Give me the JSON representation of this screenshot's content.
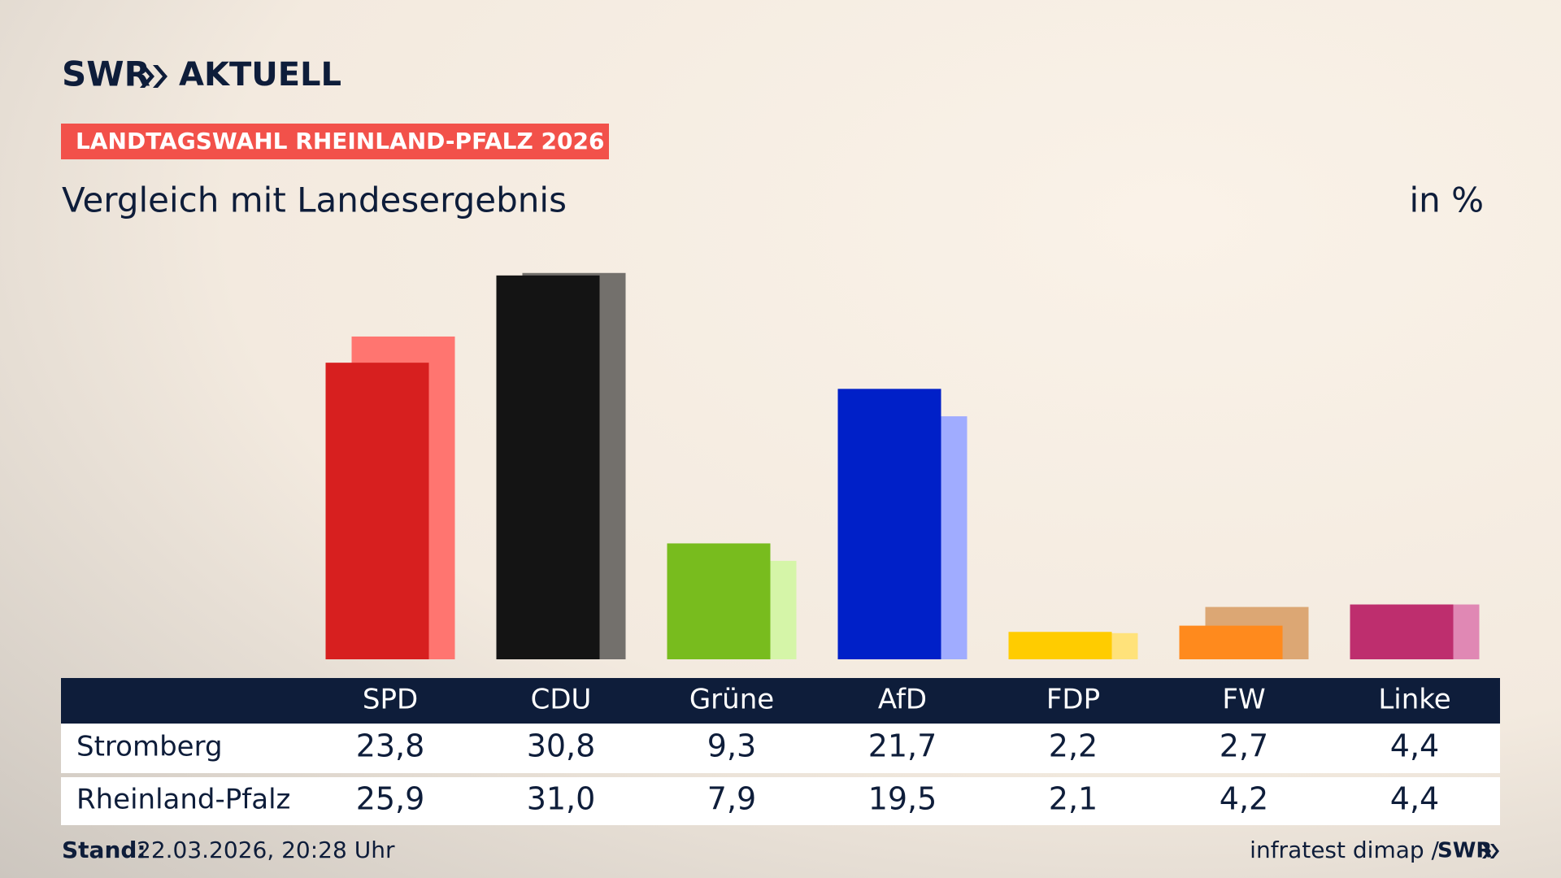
{
  "brand": {
    "name": "SWR",
    "product": "AKTUELL"
  },
  "tag": "LANDTAGSWAHL RHEINLAND-PFALZ 2026",
  "chart_data": {
    "type": "bar",
    "title": "Vergleich mit Landesergebnis",
    "unit": "in %",
    "categories": [
      "SPD",
      "CDU",
      "Grüne",
      "AfD",
      "FDP",
      "FW",
      "Linke"
    ],
    "series": [
      {
        "name": "Stromberg",
        "colors": [
          "#d71f1f",
          "#141414",
          "#78bc1e",
          "#0020c8",
          "#ffcc00",
          "#ff8a1d",
          "#be2e6e"
        ],
        "values": [
          23.8,
          30.8,
          9.3,
          21.7,
          2.2,
          2.7,
          4.4
        ],
        "value_labels": [
          "23,8",
          "30,8",
          "9,3",
          "21,7",
          "2,2",
          "2,7",
          "4,4"
        ]
      },
      {
        "name": "Rheinland-Pfalz",
        "colors": [
          "#ff7570",
          "#73706c",
          "#d5f5a8",
          "#a0acff",
          "#ffe27a",
          "#dca774",
          "#e088b4"
        ],
        "values": [
          25.9,
          31.0,
          7.9,
          19.5,
          2.1,
          4.2,
          4.4
        ],
        "value_labels": [
          "25,9",
          "31,0",
          "7,9",
          "19,5",
          "2,1",
          "4,2",
          "4,4"
        ]
      }
    ]
  },
  "footer": {
    "label": "Stand:",
    "date": "22.03.2026, 20:28 Uhr",
    "source": "infratest dimap /",
    "source_brand": "SWR"
  }
}
